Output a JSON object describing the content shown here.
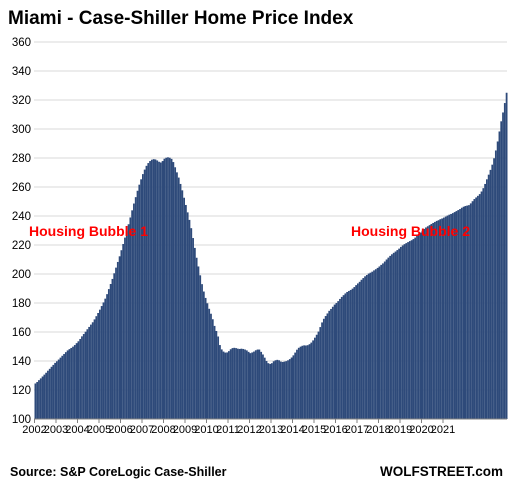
{
  "colors": {
    "bar": "#2e4a7a",
    "bar_edge": "#1d3358",
    "annotation": "#ff0000",
    "grid": "#d9d9d9"
  },
  "chart_data": {
    "type": "bar",
    "title": "Miami - Case-Shiller Home Price Index",
    "xlabel": "",
    "ylabel": "",
    "ylim": [
      100,
      360
    ],
    "yticks": [
      100,
      120,
      140,
      160,
      180,
      200,
      220,
      240,
      260,
      280,
      300,
      320,
      340,
      360
    ],
    "xticks": [
      "2002",
      "2003",
      "2004",
      "2005",
      "2006",
      "2007",
      "2008",
      "2009",
      "2010",
      "2011",
      "2012",
      "2013",
      "2014",
      "2015",
      "2016",
      "2017",
      "2018",
      "2019",
      "2020",
      "2021"
    ],
    "grid": true,
    "frequency": "monthly",
    "start": "2002-01",
    "end": "2021-10",
    "values": [
      124.5,
      125.5,
      126.8,
      128.0,
      129.3,
      130.6,
      131.9,
      133.3,
      134.6,
      136.0,
      137.3,
      138.7,
      139.8,
      141.0,
      142.3,
      143.6,
      144.8,
      146.1,
      147.3,
      148.2,
      149.0,
      149.9,
      151.0,
      152.3,
      153.6,
      155.2,
      157.0,
      158.6,
      160.2,
      161.9,
      163.5,
      165.1,
      166.7,
      168.7,
      170.9,
      173.1,
      175.4,
      177.9,
      180.4,
      183.0,
      186.1,
      189.6,
      193.1,
      196.6,
      200.5,
      204.4,
      208.3,
      212.2,
      216.4,
      220.7,
      225.1,
      229.5,
      234.3,
      239.0,
      243.9,
      248.6,
      253.0,
      257.4,
      261.6,
      265.3,
      268.9,
      272.0,
      274.6,
      276.5,
      277.9,
      278.8,
      279.2,
      279.0,
      278.3,
      277.4,
      276.9,
      277.9,
      279.5,
      280.2,
      280.5,
      280.2,
      279.4,
      277.2,
      273.6,
      270.1,
      266.5,
      262.1,
      257.7,
      252.6,
      247.6,
      242.5,
      237.3,
      231.6,
      224.8,
      218.0,
      211.2,
      205.2,
      199.1,
      193.0,
      187.9,
      183.5,
      179.8,
      176.0,
      172.6,
      168.8,
      164.2,
      160.7,
      156.9,
      151.0,
      148.0,
      146.5,
      145.8,
      145.9,
      146.8,
      148.1,
      148.9,
      149.1,
      148.9,
      148.5,
      148.3,
      148.5,
      148.3,
      147.9,
      147.3,
      146.3,
      145.4,
      145.9,
      146.5,
      147.4,
      147.9,
      147.9,
      146.3,
      144.5,
      142.3,
      140.0,
      138.5,
      138.0,
      138.5,
      139.8,
      140.5,
      140.8,
      140.5,
      139.6,
      139.3,
      139.6,
      139.9,
      140.5,
      141.3,
      142.4,
      143.9,
      145.8,
      147.8,
      149.1,
      149.9,
      150.5,
      150.8,
      150.7,
      150.9,
      151.6,
      152.7,
      154.2,
      156.1,
      158.1,
      160.3,
      163.4,
      166.6,
      169.1,
      171.0,
      172.8,
      174.6,
      175.9,
      177.4,
      178.9,
      180.0,
      181.3,
      182.8,
      184.2,
      185.4,
      186.6,
      187.6,
      188.3,
      189.0,
      189.9,
      191.0,
      192.3,
      193.5,
      194.6,
      196.0,
      197.2,
      198.4,
      199.3,
      200.3,
      200.9,
      201.6,
      202.5,
      203.3,
      204.2,
      205.2,
      206.3,
      207.3,
      208.6,
      210.0,
      211.3,
      212.5,
      213.6,
      214.6,
      215.5,
      216.5,
      217.5,
      218.7,
      219.7,
      220.6,
      221.3,
      222.0,
      222.7,
      223.3,
      224.1,
      225.1,
      226.3,
      227.3,
      228.6,
      229.8,
      231.1,
      232.1,
      232.9,
      233.7,
      234.5,
      235.2,
      235.9,
      236.6,
      237.1,
      237.8,
      238.3,
      238.9,
      239.6,
      240.3,
      240.9,
      241.4,
      242.0,
      242.7,
      243.4,
      244.1,
      244.8,
      245.7,
      246.4,
      246.9,
      247.2,
      247.5,
      248.7,
      250.2,
      251.7,
      252.8,
      253.9,
      255.1,
      256.9,
      259.2,
      262.1,
      265.3,
      268.5,
      271.8,
      275.4,
      279.8,
      285.2,
      291.4,
      298.3,
      305.3,
      311.4,
      317.9,
      325.0
    ]
  },
  "annotations": [
    {
      "text": "Housing Bubble 1"
    },
    {
      "text": "Housing Bubble 2"
    }
  ],
  "footer": {
    "source": "Source: S&P CoreLogic Case-Shiller",
    "credit": "WOLFSTREET.com"
  }
}
